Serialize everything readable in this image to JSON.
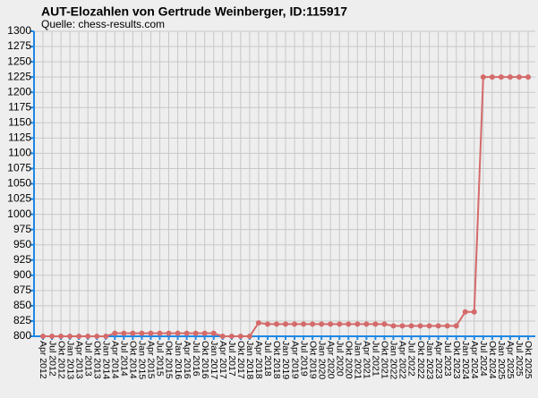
{
  "chart_data": {
    "type": "line",
    "title": "AUT-Elozahlen von Gertrude Weinberger, ID:115917",
    "subtitle": "Quelle: chess-results.com",
    "categories": [
      "Apr 2012",
      "Jul 2012",
      "Okt 2012",
      "Jan 2013",
      "Apr 2013",
      "Jul 2013",
      "Okt 2013",
      "Jan 2014",
      "Apr 2014",
      "Jul 2014",
      "Okt 2014",
      "Jan 2015",
      "Apr 2015",
      "Jul 2015",
      "Okt 2015",
      "Jan 2016",
      "Apr 2016",
      "Jul 2016",
      "Okt 2016",
      "Jan 2017",
      "Apr 2017",
      "Jul 2017",
      "Okt 2017",
      "Jan 2018",
      "Apr 2018",
      "Jul 2018",
      "Okt 2018",
      "Jan 2019",
      "Apr 2019",
      "Jul 2019",
      "Okt 2019",
      "Jan 2020",
      "Apr 2020",
      "Jul 2020",
      "Okt 2020",
      "Jan 2021",
      "Apr 2021",
      "Jul 2021",
      "Okt 2021",
      "Jan 2022",
      "Apr 2022",
      "Jul 2022",
      "Okt 2022",
      "Jan 2023",
      "Apr 2023",
      "Jul 2023",
      "Okt 2023",
      "Jan 2024",
      "Apr 2024",
      "Jul 2024",
      "Okt 2024",
      "Jan 2025",
      "Apr 2025",
      "Jul 2025",
      "Okt 2025"
    ],
    "series": [
      {
        "color": "#d46a6a",
        "values": [
          800,
          800,
          800,
          800,
          800,
          800,
          800,
          800,
          805,
          805,
          805,
          805,
          805,
          805,
          805,
          805,
          805,
          805,
          805,
          805,
          800,
          800,
          800,
          800,
          822,
          820,
          820,
          820,
          820,
          820,
          820,
          820,
          820,
          820,
          820,
          820,
          820,
          820,
          820,
          817,
          817,
          817,
          817,
          817,
          817,
          817,
          817,
          840,
          840,
          1225,
          1225,
          1225,
          1225,
          1225,
          1225
        ]
      }
    ],
    "ylim": [
      800,
      1300
    ],
    "yticks": [
      800,
      825,
      850,
      875,
      900,
      925,
      950,
      975,
      1000,
      1025,
      1050,
      1075,
      1100,
      1125,
      1150,
      1175,
      1200,
      1225,
      1250,
      1275,
      1300
    ],
    "grid": true,
    "axis_color": "#1e88e5"
  }
}
